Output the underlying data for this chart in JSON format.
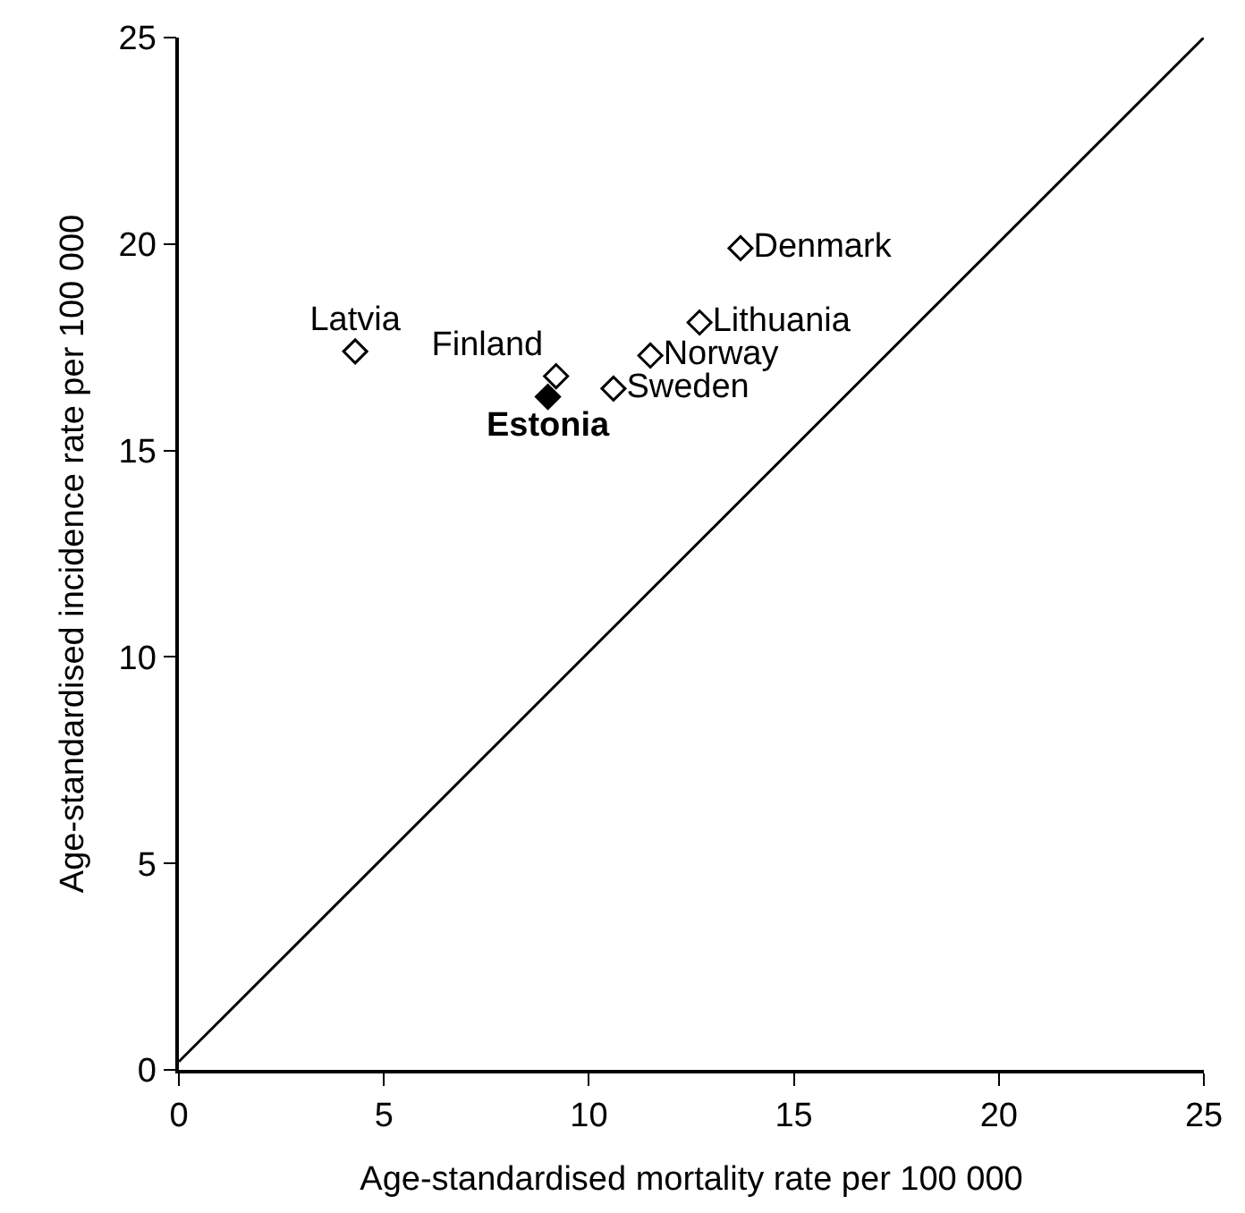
{
  "chart_data": {
    "type": "scatter",
    "xlabel": "Age-standardised mortality rate per 100 000",
    "ylabel": "Age-standardised incidence rate per 100 000",
    "xlim": [
      0,
      25
    ],
    "ylim": [
      0,
      25
    ],
    "xticks": [
      0,
      5,
      10,
      15,
      20,
      25
    ],
    "yticks": [
      0,
      5,
      10,
      15,
      20,
      25
    ],
    "legend": false,
    "marker": "diamond",
    "series": [
      {
        "name": "Latvia",
        "color": "#ffffff",
        "x": [
          4.3
        ],
        "values": [
          17.4
        ]
      },
      {
        "name": "Finland",
        "color": "#ffffff",
        "x": [
          9.2
        ],
        "values": [
          16.8
        ]
      },
      {
        "name": "Estonia",
        "color": "#000000",
        "x": [
          9.0
        ],
        "values": [
          16.3
        ]
      },
      {
        "name": "Sweden",
        "color": "#ffffff",
        "x": [
          10.6
        ],
        "values": [
          16.5
        ]
      },
      {
        "name": "Norway",
        "color": "#ffffff",
        "x": [
          11.5
        ],
        "values": [
          17.3
        ]
      },
      {
        "name": "Lithuania",
        "color": "#ffffff",
        "x": [
          12.7
        ],
        "values": [
          18.1
        ]
      },
      {
        "name": "Denmark",
        "color": "#ffffff",
        "x": [
          13.7
        ],
        "values": [
          19.9
        ]
      },
      {
        "type": "line",
        "color": "#000000",
        "line_style": "solid",
        "marker": "none",
        "x": [
          0,
          25
        ],
        "values": [
          0.2,
          25
        ]
      }
    ]
  }
}
